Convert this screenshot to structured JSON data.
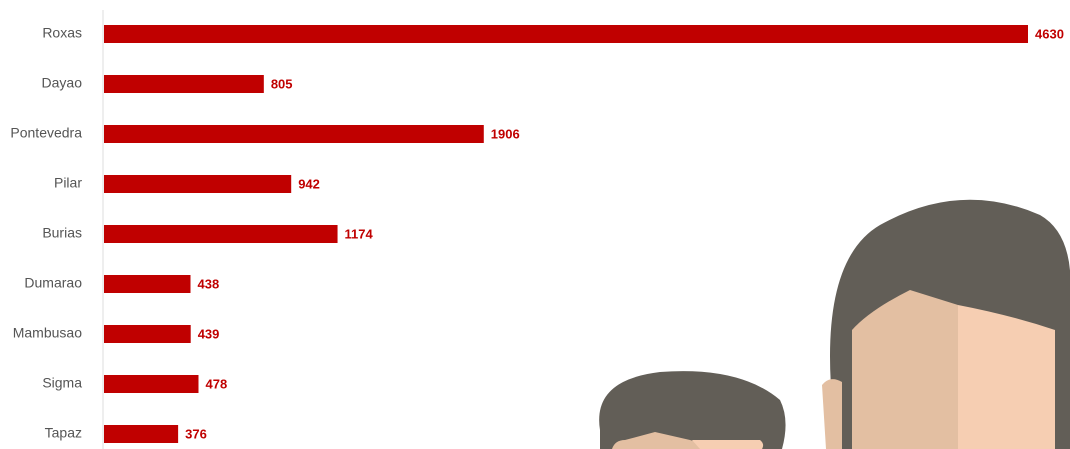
{
  "chart_data": {
    "type": "bar",
    "orientation": "horizontal",
    "categories": [
      "Roxas",
      "Dayao",
      "Pontevedra",
      "Pilar",
      "Burias",
      "Dumarao",
      "Mambusao",
      "Sigma",
      "Tapaz"
    ],
    "values": [
      4630,
      805,
      1906,
      942,
      1174,
      438,
      439,
      478,
      376
    ],
    "color": "#c00000"
  }
}
